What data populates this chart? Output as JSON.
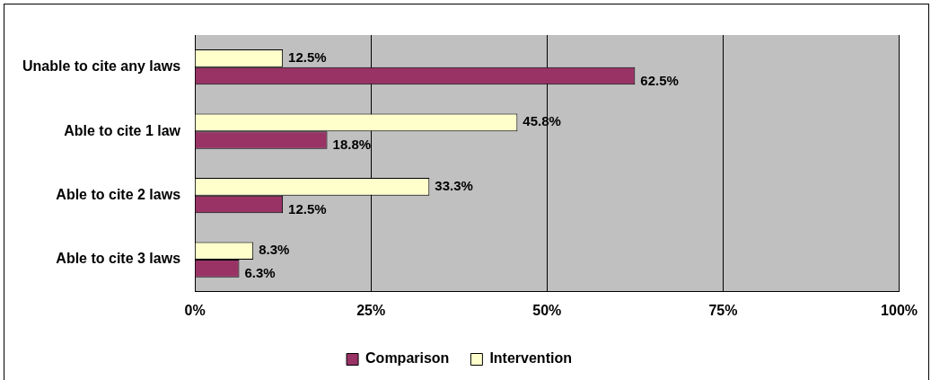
{
  "chart_data": {
    "type": "bar",
    "orientation": "horizontal",
    "categories": [
      "Unable to cite any laws",
      "Able to cite 1 law",
      "Able to cite 2 laws",
      "Able to cite 3 laws"
    ],
    "series": [
      {
        "name": "Comparison",
        "color": "#993366",
        "values": [
          62.5,
          18.8,
          12.5,
          6.3
        ],
        "value_labels": [
          "62.5%",
          "18.8%",
          "12.5%",
          "6.3%"
        ]
      },
      {
        "name": "Intervention",
        "color": "#ffffcc",
        "values": [
          12.5,
          45.8,
          33.3,
          8.3
        ],
        "value_labels": [
          "12.5%",
          "45.8%",
          "33.3%",
          "8.3%"
        ]
      }
    ],
    "xlim": [
      0,
      100
    ],
    "xticks": [
      {
        "value": 0,
        "label": "0%"
      },
      {
        "value": 25,
        "label": "25%"
      },
      {
        "value": 50,
        "label": "50%"
      },
      {
        "value": 75,
        "label": "75%"
      },
      {
        "value": 100,
        "label": "100%"
      }
    ],
    "grid": "x",
    "legend": "bottom"
  }
}
